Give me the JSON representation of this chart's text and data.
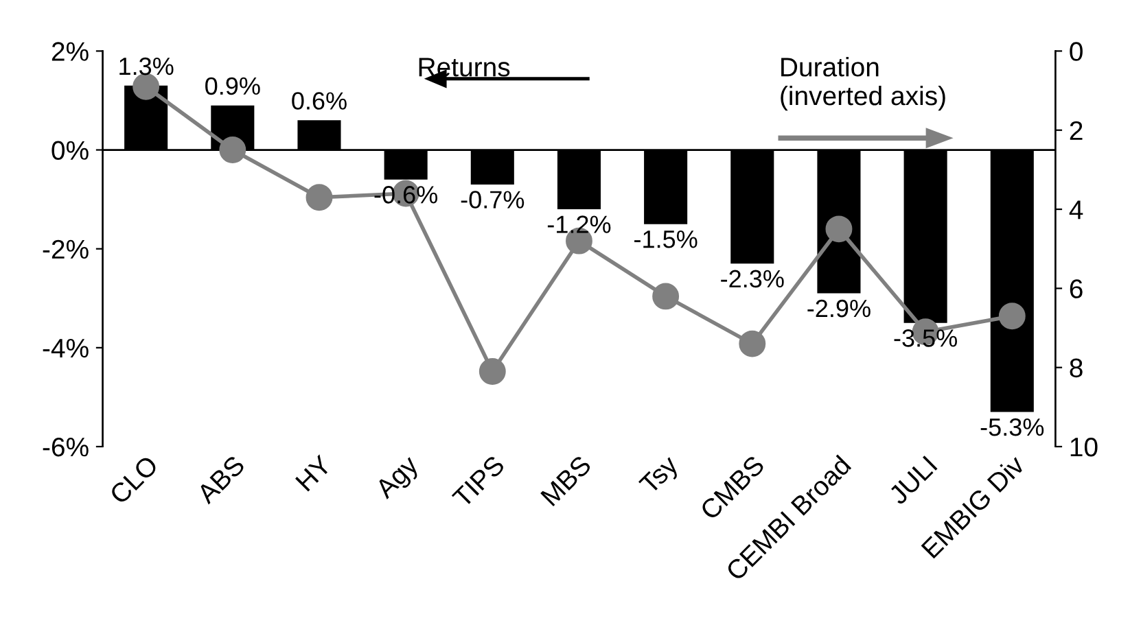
{
  "chart_data": {
    "type": "bar",
    "categories": [
      "CLO",
      "ABS",
      "HY",
      "Agy",
      "TIPS",
      "MBS",
      "Tsy",
      "CMBS",
      "CEMBI Broad",
      "JULI",
      "EMBIG Div"
    ],
    "series": [
      {
        "color": "#000000",
        "values": [
          1.3,
          0.9,
          0.6,
          -0.6,
          -0.7,
          -1.2,
          -1.5,
          -2.3,
          -2.9,
          -3.5,
          -5.3
        ],
        "value_labels": [
          "1.3%",
          "0.9%",
          "0.6%",
          "-0.6%",
          "-0.7%",
          "-1.2%",
          "-1.5%",
          "-2.3%",
          "-2.9%",
          "-3.5%",
          "-5.3%"
        ]
      },
      {
        "type": "line",
        "axis": "y2",
        "color": "#808080",
        "marker": "circle",
        "values": [
          0.9,
          2.5,
          3.7,
          3.6,
          8.1,
          4.8,
          6.2,
          7.4,
          4.5,
          7.1,
          6.7
        ]
      }
    ],
    "ylim": [
      -6,
      2
    ],
    "yticks": [
      {
        "value": -6,
        "label": "-6%"
      },
      {
        "value": -4,
        "label": "-4%"
      },
      {
        "value": -2,
        "label": "-2%"
      },
      {
        "value": 0,
        "label": "0%"
      },
      {
        "value": 2,
        "label": "2%"
      }
    ],
    "y2lim": [
      10,
      0
    ],
    "y2ticks": [
      0,
      2,
      4,
      6,
      8,
      10
    ],
    "annotations": [
      "Returns",
      "Duration\n(inverted axis)"
    ],
    "legend": false
  }
}
